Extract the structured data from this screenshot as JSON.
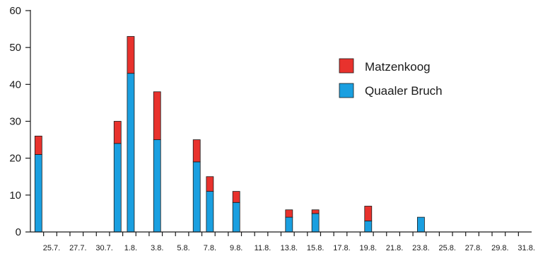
{
  "chart_data": {
    "type": "bar",
    "stacked": true,
    "title": "",
    "xlabel": "",
    "ylabel": "",
    "ylim": [
      0,
      60
    ],
    "y_ticks": [
      0,
      10,
      20,
      30,
      40,
      50,
      60
    ],
    "x_tick_labels": [
      "25.7.",
      "27.7.",
      "30.7.",
      "1.8.",
      "3.8.",
      "5.8.",
      "7.8.",
      "9.8.",
      "11.8.",
      "13.8.",
      "15.8.",
      "17.8.",
      "19.8.",
      "21.8.",
      "23.8.",
      "25.8.",
      "27.8.",
      "29.8.",
      "31.8."
    ],
    "series": [
      {
        "name": "Quaaler Bruch",
        "color": "#1a9fe0",
        "values": [
          21,
          0,
          0,
          0,
          0,
          0,
          24,
          43,
          0,
          25,
          0,
          0,
          19,
          11,
          0,
          8,
          0,
          0,
          0,
          4,
          0,
          5,
          0,
          0,
          0,
          3,
          0,
          0,
          0,
          4,
          0,
          0,
          0,
          0,
          0,
          0,
          0
        ]
      },
      {
        "name": "Matzenkoog",
        "color": "#e8322d",
        "values": [
          5,
          0,
          0,
          0,
          0,
          0,
          6,
          10,
          0,
          13,
          0,
          0,
          6,
          4,
          0,
          3,
          0,
          0,
          0,
          2,
          0,
          1,
          0,
          0,
          0,
          4,
          0,
          0,
          0,
          0,
          0,
          0,
          0,
          0,
          0,
          0,
          0
        ]
      }
    ],
    "legend": {
      "placement": "right",
      "order": [
        "Matzenkoog",
        "Quaaler Bruch"
      ]
    }
  }
}
